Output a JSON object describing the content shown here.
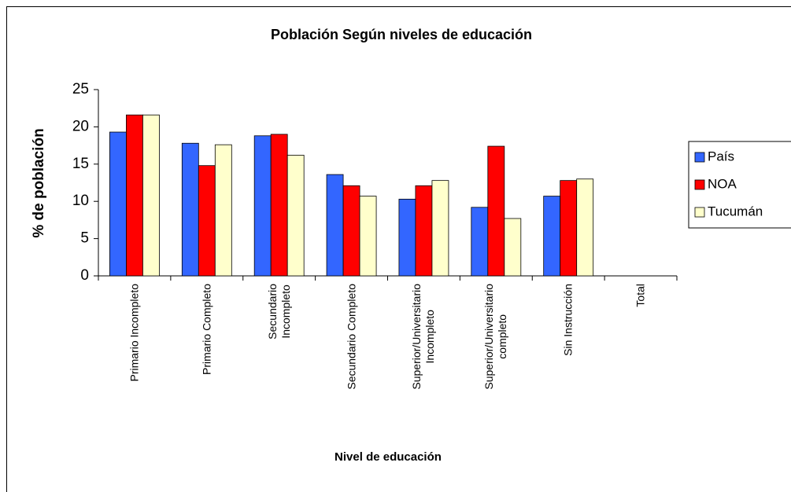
{
  "chart_data": {
    "type": "bar",
    "title": "Población Según niveles de educación",
    "x_label": "Nivel de educación",
    "y_label": "% de población",
    "categories": [
      "Primario Incompleto",
      "Primario Completo",
      "Secundario\nIncompleto",
      "Secundario Completo",
      "Superior/Universitario\nIncompleto",
      "Superior/Universitario\ncompleto",
      "Sin Instrucción",
      "Total"
    ],
    "series": [
      {
        "name": "País",
        "color": "#3366ff",
        "values": [
          19.3,
          17.8,
          18.8,
          13.6,
          10.3,
          9.2,
          10.7,
          null
        ]
      },
      {
        "name": "NOA",
        "color": "#ff0000",
        "values": [
          21.6,
          14.8,
          19.0,
          12.1,
          12.1,
          17.4,
          12.8,
          null
        ]
      },
      {
        "name": "Tucumán",
        "color": "#ffffcc",
        "values": [
          21.6,
          17.6,
          16.2,
          10.7,
          12.8,
          7.7,
          13.0,
          null
        ]
      }
    ],
    "ylim": [
      0,
      25
    ],
    "yticks": [
      0,
      5,
      10,
      15,
      20,
      25
    ],
    "grid": false,
    "legend": "right"
  }
}
